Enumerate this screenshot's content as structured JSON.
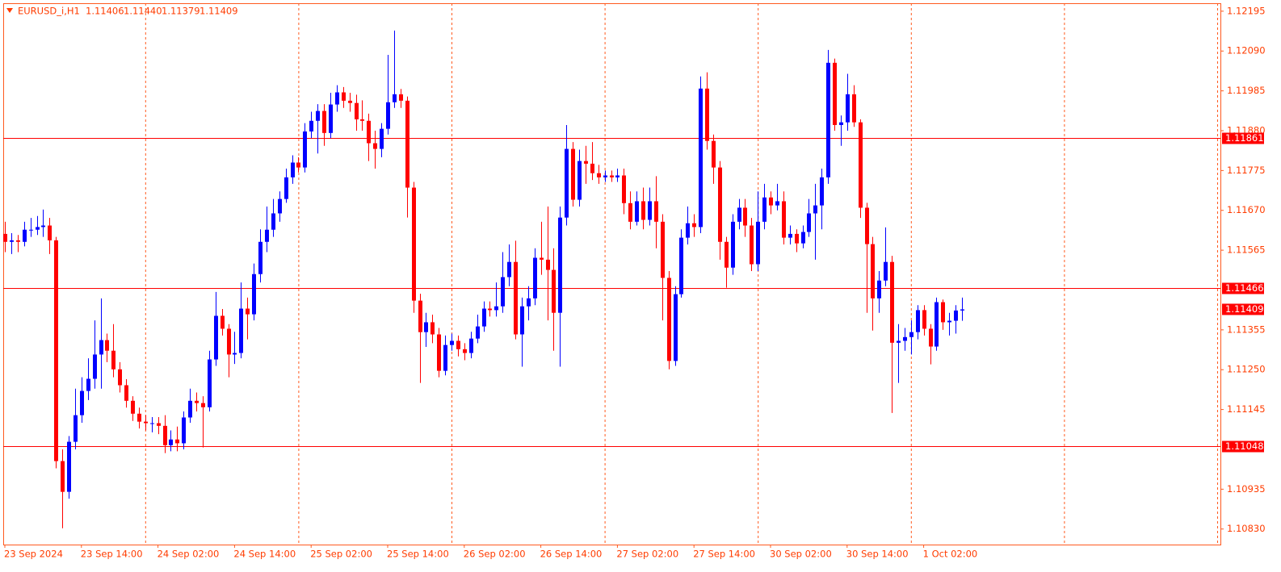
{
  "chart_data": {
    "type": "candlestick",
    "title": "EURUSD_i,H1",
    "ohlc_labels": [
      "1.11406",
      "1.11440",
      "1.11379",
      "1.11409"
    ],
    "categories": [
      "23 Sep 2024",
      null,
      null,
      null,
      null,
      null,
      null,
      null,
      null,
      null,
      null,
      null,
      "23 Sep 14:00",
      null,
      null,
      null,
      null,
      null,
      null,
      null,
      null,
      null,
      null,
      null,
      "24 Sep 02:00",
      null,
      null,
      null,
      null,
      null,
      null,
      null,
      null,
      null,
      null,
      null,
      "24 Sep 14:00",
      null,
      null,
      null,
      null,
      null,
      null,
      null,
      null,
      null,
      null,
      null,
      "25 Sep 02:00",
      null,
      null,
      null,
      null,
      null,
      null,
      null,
      null,
      null,
      null,
      null,
      "25 Sep 14:00",
      null,
      null,
      null,
      null,
      null,
      null,
      null,
      null,
      null,
      null,
      null,
      "26 Sep 02:00",
      null,
      null,
      null,
      null,
      null,
      null,
      null,
      null,
      null,
      null,
      null,
      "26 Sep 14:00",
      null,
      null,
      null,
      null,
      null,
      null,
      null,
      null,
      null,
      null,
      null,
      "27 Sep 02:00",
      null,
      null,
      null,
      null,
      null,
      null,
      null,
      null,
      null,
      null,
      null,
      "27 Sep 14:00",
      null,
      null,
      null,
      null,
      null,
      null,
      null,
      null,
      null,
      null,
      null,
      "30 Sep 02:00",
      null,
      null,
      null,
      null,
      null,
      null,
      null,
      null,
      null,
      null,
      null,
      "30 Sep 14:00",
      null,
      null,
      null,
      null,
      null,
      null,
      null,
      null,
      null,
      null,
      null,
      "1 Oct 02:00",
      null,
      null,
      null,
      null,
      null,
      null
    ],
    "open": [
      1.11608,
      1.11587,
      1.11591,
      1.11587,
      1.11619,
      1.11619,
      1.11626,
      1.1163,
      1.11591,
      1.11009,
      1.10928,
      1.1106,
      1.1113,
      1.11194,
      1.11226,
      1.1129,
      1.11328,
      1.113,
      1.11251,
      1.11209,
      1.11168,
      1.11134,
      1.11113,
      1.11109,
      1.11109,
      1.11102,
      1.11051,
      1.11066,
      1.11056,
      1.11124,
      1.11168,
      1.11162,
      1.11151,
      1.11277,
      1.11392,
      1.11358,
      1.1129,
      1.11294,
      1.11411,
      1.11396,
      1.11502,
      1.11587,
      1.11619,
      1.11662,
      1.117,
      1.11757,
      1.11796,
      1.11783,
      1.11878,
      1.11906,
      1.11932,
      1.11874,
      1.11949,
      1.11981,
      1.11959,
      1.11953,
      1.1191,
      1.11906,
      1.11847,
      1.11832,
      1.11885,
      1.11955,
      1.11976,
      1.11959,
      1.1173,
      1.11432,
      1.11349,
      1.11375,
      1.11343,
      1.11247,
      1.11315,
      1.11326,
      1.11304,
      1.11294,
      1.11332,
      1.11364,
      1.11411,
      1.11407,
      1.11417,
      1.11494,
      1.11534,
      1.11343,
      1.11417,
      1.11438,
      1.11545,
      1.1154,
      1.11513,
      1.114,
      1.11651,
      1.11832,
      1.11698,
      1.118,
      1.11793,
      1.11768,
      1.11757,
      1.11762,
      1.11757,
      1.11762,
      1.11689,
      1.1164,
      1.11694,
      1.11645,
      1.11694,
      1.1164,
      1.11492,
      1.11273,
      1.11449,
      1.11598,
      1.11636,
      1.11626,
      1.11991,
      1.11853,
      1.11783,
      1.11587,
      1.11519,
      1.1164,
      1.11677,
      1.1163,
      1.11528,
      1.1164,
      1.11704,
      1.11683,
      1.11694,
      1.11598,
      1.11608,
      1.11583,
      1.11613,
      1.11662,
      1.11683,
      1.11757,
      1.12059,
      1.11895,
      1.11902,
      1.11976,
      1.11902,
      1.11677,
      1.11581,
      1.11438,
      1.11485,
      1.11534,
      1.11321,
      1.11326,
      1.11336,
      1.11349,
      1.11407,
      1.11358,
      1.11311,
      1.11428,
      1.11375,
      1.11379,
      1.11406
    ],
    "high": [
      1.1164,
      1.1161,
      1.11605,
      1.1164,
      1.1165,
      1.11655,
      1.11672,
      1.1165,
      1.116,
      1.1104,
      1.11075,
      1.112,
      1.1123,
      1.1128,
      1.1138,
      1.11438,
      1.11345,
      1.1137,
      1.1127,
      1.11225,
      1.1118,
      1.1115,
      1.1113,
      1.11125,
      1.11125,
      1.1113,
      1.1109,
      1.111,
      1.1114,
      1.112,
      1.1119,
      1.1118,
      1.113,
      1.11455,
      1.1141,
      1.1137,
      1.1135,
      1.1148,
      1.1144,
      1.1153,
      1.1162,
      1.1168,
      1.117,
      1.1172,
      1.1178,
      1.11815,
      1.1181,
      1.119,
      1.1193,
      1.1195,
      1.1195,
      1.1198,
      1.12,
      1.11995,
      1.1198,
      1.11975,
      1.1196,
      1.11925,
      1.1188,
      1.119,
      1.1208,
      1.12144,
      1.1199,
      1.1197,
      1.11745,
      1.1145,
      1.114,
      1.11395,
      1.1136,
      1.1134,
      1.11345,
      1.1134,
      1.1132,
      1.1135,
      1.11395,
      1.1143,
      1.1143,
      1.1148,
      1.1156,
      1.1158,
      1.1159,
      1.1144,
      1.1147,
      1.1157,
      1.1164,
      1.1168,
      1.1157,
      1.1168,
      1.11895,
      1.1185,
      1.1183,
      1.1184,
      1.1185,
      1.1179,
      1.11775,
      1.11775,
      1.1178,
      1.1178,
      1.1172,
      1.1172,
      1.1173,
      1.1173,
      1.1176,
      1.1166,
      1.1151,
      1.1147,
      1.1162,
      1.1168,
      1.1166,
      1.12023,
      1.12034,
      1.1187,
      1.118,
      1.116,
      1.1166,
      1.117,
      1.117,
      1.1165,
      1.1172,
      1.1174,
      1.1172,
      1.1174,
      1.1172,
      1.1163,
      1.1162,
      1.1163,
      1.117,
      1.1174,
      1.1178,
      1.12093,
      1.1207,
      1.1192,
      1.1203,
      1.12,
      1.1191,
      1.1169,
      1.116,
      1.1151,
      1.11625,
      1.1155,
      1.1137,
      1.1136,
      1.1138,
      1.1142,
      1.1142,
      1.1137,
      1.1144,
      1.11435,
      1.114,
      1.1142,
      1.1144
    ],
    "low": [
      1.1156,
      1.11555,
      1.1156,
      1.11575,
      1.116,
      1.11605,
      1.116,
      1.11555,
      1.1099,
      1.10832,
      1.1091,
      1.1104,
      1.1111,
      1.1117,
      1.112,
      1.112,
      1.1127,
      1.1123,
      1.1119,
      1.1115,
      1.11115,
      1.11095,
      1.1109,
      1.11085,
      1.1108,
      1.1103,
      1.11035,
      1.11035,
      1.1104,
      1.1111,
      1.1114,
      1.11045,
      1.1114,
      1.1126,
      1.1134,
      1.1123,
      1.11265,
      1.1128,
      1.1133,
      1.1138,
      1.1148,
      1.1156,
      1.116,
      1.1164,
      1.1169,
      1.1174,
      1.1177,
      1.1177,
      1.1186,
      1.1182,
      1.1184,
      1.1186,
      1.1193,
      1.1194,
      1.1193,
      1.1188,
      1.1188,
      1.118,
      1.1178,
      1.1181,
      1.1187,
      1.1194,
      1.1194,
      1.11651,
      1.114,
      1.11215,
      1.1131,
      1.1132,
      1.1123,
      1.11235,
      1.113,
      1.11285,
      1.11275,
      1.1128,
      1.1132,
      1.1135,
      1.1139,
      1.1139,
      1.114,
      1.1147,
      1.1133,
      1.11258,
      1.1138,
      1.1142,
      1.115,
      1.1138,
      1.113,
      1.11258,
      1.1163,
      1.1168,
      1.1168,
      1.1174,
      1.1175,
      1.1174,
      1.11745,
      1.11745,
      1.11745,
      1.1166,
      1.1162,
      1.1163,
      1.1162,
      1.1163,
      1.1157,
      1.1138,
      1.11251,
      1.1126,
      1.1144,
      1.1158,
      1.116,
      1.1161,
      1.1183,
      1.1174,
      1.1154,
      1.11466,
      1.115,
      1.1162,
      1.116,
      1.1151,
      1.1151,
      1.1162,
      1.1166,
      1.1167,
      1.1158,
      1.1158,
      1.1156,
      1.1157,
      1.116,
      1.1154,
      1.1162,
      1.1174,
      1.1188,
      1.1184,
      1.1188,
      1.1189,
      1.1165,
      1.114,
      1.11353,
      1.114,
      1.1147,
      1.11136,
      1.11215,
      1.113,
      1.1129,
      1.1133,
      1.1134,
      1.11264,
      1.113,
      1.11355,
      1.1134,
      1.11345,
      1.11379
    ],
    "close": [
      1.11587,
      1.11591,
      1.11587,
      1.11619,
      1.11619,
      1.11626,
      1.1163,
      1.11591,
      1.11009,
      1.10928,
      1.1106,
      1.1113,
      1.11194,
      1.11226,
      1.1129,
      1.11328,
      1.113,
      1.11251,
      1.11209,
      1.11168,
      1.11134,
      1.11113,
      1.11109,
      1.11109,
      1.11102,
      1.11051,
      1.11066,
      1.11056,
      1.11124,
      1.11168,
      1.11162,
      1.11151,
      1.11277,
      1.11392,
      1.11358,
      1.1129,
      1.11294,
      1.11411,
      1.11396,
      1.11502,
      1.11587,
      1.11619,
      1.11662,
      1.117,
      1.11757,
      1.11796,
      1.11783,
      1.11878,
      1.11906,
      1.11932,
      1.11874,
      1.11949,
      1.11981,
      1.11959,
      1.11953,
      1.1191,
      1.11906,
      1.11847,
      1.11832,
      1.11885,
      1.11955,
      1.11976,
      1.11959,
      1.1173,
      1.11432,
      1.11349,
      1.11375,
      1.11343,
      1.11247,
      1.11315,
      1.11326,
      1.11304,
      1.11294,
      1.11332,
      1.11364,
      1.11411,
      1.11407,
      1.11417,
      1.11494,
      1.11534,
      1.11343,
      1.11417,
      1.11438,
      1.11545,
      1.1154,
      1.11513,
      1.114,
      1.11651,
      1.11832,
      1.11698,
      1.118,
      1.11793,
      1.11768,
      1.11757,
      1.11762,
      1.11757,
      1.11762,
      1.11689,
      1.1164,
      1.11694,
      1.11645,
      1.11694,
      1.1164,
      1.11492,
      1.11273,
      1.11449,
      1.11598,
      1.11636,
      1.11626,
      1.11991,
      1.11853,
      1.11783,
      1.11587,
      1.11519,
      1.1164,
      1.11677,
      1.1163,
      1.11528,
      1.1164,
      1.11704,
      1.11683,
      1.11694,
      1.11598,
      1.11608,
      1.11583,
      1.11613,
      1.11662,
      1.11683,
      1.11757,
      1.12059,
      1.11895,
      1.11902,
      1.11976,
      1.11902,
      1.11677,
      1.11581,
      1.11438,
      1.11485,
      1.11534,
      1.11321,
      1.11326,
      1.11336,
      1.11349,
      1.11407,
      1.11358,
      1.11311,
      1.11428,
      1.11375,
      1.11379,
      1.11406,
      1.11409
    ],
    "bull_color": "#0000ff",
    "bear_color": "#ff0000",
    "ylim": [
      1.10789,
      1.12216
    ],
    "yticks": [
      1.12195,
      {
        "value": 1.1209,
        "label": "1.12090"
      },
      1.11985,
      {
        "value": 1.1188,
        "label": "1.11880"
      },
      1.11775,
      {
        "value": 1.1167,
        "label": "1.11670"
      },
      1.11565,
      1.11355,
      {
        "value": 1.1125,
        "label": "1.11250"
      },
      1.11145,
      1.10935,
      {
        "value": 1.1083,
        "label": "1.10830"
      }
    ],
    "hlines": {
      "values": [
        1.11861,
        1.11466,
        1.11048
      ],
      "color": "#ff0000"
    }
  }
}
